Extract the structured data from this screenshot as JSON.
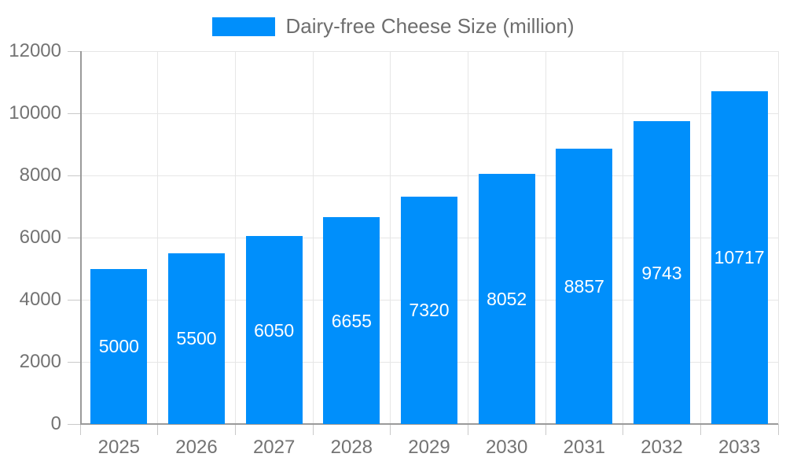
{
  "legend": {
    "label": "Dairy-free Cheese Size (million)"
  },
  "chart_data": {
    "type": "bar",
    "title": "Dairy-free Cheese Size (million)",
    "categories": [
      "2025",
      "2026",
      "2027",
      "2028",
      "2029",
      "2030",
      "2031",
      "2032",
      "2033"
    ],
    "values": [
      5000,
      5500,
      6050,
      6655,
      7320,
      8052,
      8857,
      9743,
      10717
    ],
    "xlabel": "",
    "ylabel": "",
    "ylim": [
      0,
      12000
    ],
    "yticks": [
      0,
      2000,
      4000,
      6000,
      8000,
      10000,
      12000
    ],
    "grid": true,
    "legend_position": "top",
    "colors": {
      "bar": "#008FFB",
      "bar_label": "#FFFFFF",
      "axis_text": "#737373",
      "legend_text": "#6E6E6E",
      "grid_line": "#E6E6E6",
      "axis_line": "#9A9A9A",
      "tick_line": "#C9C9C9",
      "background": "#FFFFFF"
    }
  }
}
